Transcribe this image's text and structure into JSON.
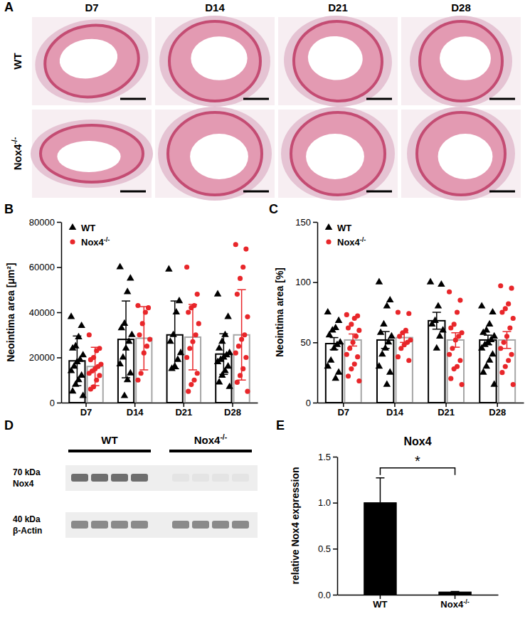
{
  "panel_labels": [
    "A",
    "B",
    "C",
    "D",
    "E"
  ],
  "histology": {
    "columns": [
      "D7",
      "D14",
      "D21",
      "D28"
    ],
    "rows": [
      "WT",
      "Nox4-/-"
    ]
  },
  "blot": {
    "groups": [
      "WT",
      "Nox4-/-"
    ],
    "bands": [
      {
        "size": "70 kDa",
        "protein": "Nox4"
      },
      {
        "size": "40 kDa",
        "protein": "β-Actin"
      }
    ]
  },
  "chart_data": [
    {
      "type": "bar",
      "y_label": "Neointima area [μm²]",
      "categories": [
        "D7",
        "D14",
        "D21",
        "D28"
      ],
      "ylim": [
        0,
        80000
      ],
      "yticks": [
        0,
        20000,
        40000,
        60000,
        80000
      ],
      "legend": "upper left",
      "series": [
        {
          "name": "WT",
          "color": "#000000",
          "marker": "triangle",
          "values": [
            18500,
            28000,
            30000,
            21500
          ],
          "errors": [
            11000,
            17000,
            15000,
            9000
          ],
          "points": [
            [
              38000,
              34000,
              29000,
              25000,
              24000,
              21000,
              19000,
              18000,
              16000,
              14000,
              12000,
              10000,
              8000,
              5000,
              3000
            ],
            [
              60000,
              55000,
              49000,
              35000,
              33000,
              30000,
              27000,
              24000,
              20000,
              17000,
              13000,
              10000,
              3000
            ],
            [
              59000,
              45000,
              40000,
              30000,
              27000,
              22000,
              19000,
              16000,
              15000
            ],
            [
              48000,
              38000,
              30000,
              27000,
              24000,
              22000,
              21000,
              20000,
              19000,
              18000,
              16000,
              14000,
              12000,
              9000,
              7000
            ]
          ]
        },
        {
          "name": "Nox4-/-",
          "color": "#e8262a",
          "marker": "circle",
          "values": [
            16000,
            28500,
            29000,
            30000
          ],
          "errors": [
            8500,
            14000,
            14500,
            20000
          ],
          "points": [
            [
              30000,
              24000,
              23000,
              20000,
              19000,
              17000,
              16000,
              15000,
              14000,
              13000,
              12000,
              10000,
              7000,
              6000
            ],
            [
              43000,
              42000,
              40000,
              35000,
              30000,
              28000,
              25000,
              22000,
              13000,
              10000
            ],
            [
              60000,
              48000,
              43000,
              42000,
              40000,
              35000,
              30000,
              27000,
              24000,
              20000,
              13000,
              10000,
              8000,
              5000
            ],
            [
              70000,
              68000,
              60000,
              55000,
              48000,
              38000,
              30000,
              28000,
              25000,
              22000,
              20000,
              15000,
              12000,
              9000,
              5000
            ]
          ]
        }
      ]
    },
    {
      "type": "bar",
      "y_label": "Neointima area [%]",
      "categories": [
        "D7",
        "D14",
        "D21",
        "D28"
      ],
      "ylim": [
        0,
        150
      ],
      "yticks": [
        0,
        50,
        100,
        150
      ],
      "legend": "upper left",
      "series": [
        {
          "name": "WT",
          "color": "#000000",
          "marker": "triangle",
          "values": [
            49,
            52,
            68,
            52
          ],
          "errors": [
            5,
            7,
            7,
            4
          ],
          "points": [
            [
              75,
              68,
              62,
              60,
              56,
              50,
              48,
              45,
              35,
              30,
              25,
              20
            ],
            [
              100,
              85,
              80,
              65,
              58,
              55,
              50,
              45,
              40,
              30,
              25,
              15
            ],
            [
              100,
              98,
              80,
              68,
              65,
              60,
              55,
              45
            ],
            [
              80,
              75,
              65,
              60,
              58,
              55,
              52,
              50,
              48,
              45,
              40,
              35,
              30,
              25,
              15
            ]
          ]
        },
        {
          "name": "Nox4-/-",
          "color": "#e8262a",
          "marker": "circle",
          "values": [
            52,
            54,
            52,
            52
          ],
          "errors": [
            5,
            4,
            6,
            7
          ],
          "points": [
            [
              73,
              72,
              70,
              65,
              62,
              60,
              55,
              50,
              45,
              40,
              38,
              32,
              28,
              22,
              18
            ],
            [
              75,
              74,
              60,
              58,
              55,
              52,
              50,
              48,
              45,
              38,
              35
            ],
            [
              92,
              85,
              75,
              65,
              62,
              58,
              55,
              52,
              45,
              40,
              35,
              30,
              28,
              20,
              15
            ],
            [
              97,
              95,
              82,
              78,
              75,
              70,
              62,
              55,
              50,
              45,
              40,
              35,
              30,
              25,
              15
            ]
          ]
        }
      ]
    },
    {
      "type": "bar",
      "title": "Nox4",
      "y_label": "relative Nox4 expression",
      "categories": [
        "WT",
        "Nox4-/-"
      ],
      "ylim": [
        0,
        1.5
      ],
      "yticks": [
        {
          "value": 0,
          "label": "0.0"
        },
        0.5,
        {
          "value": 1,
          "label": "1.0"
        },
        {
          "value": 1.5,
          "label": "1.5"
        }
      ],
      "series": [
        {
          "color": "#000000",
          "values": [
            1,
            0.03
          ],
          "errors": [
            0.27,
            0.005
          ]
        }
      ],
      "annotations": [
        {
          "text": "*",
          "between": [
            "WT",
            "Nox4-/-"
          ]
        }
      ]
    }
  ]
}
